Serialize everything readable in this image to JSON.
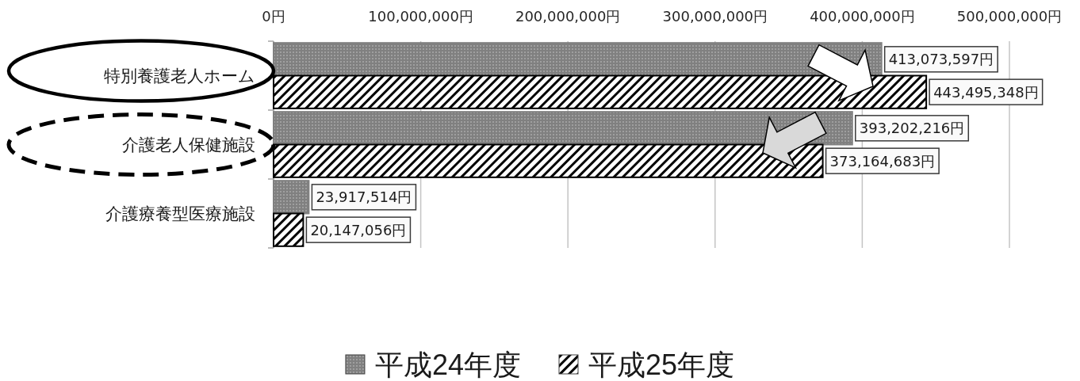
{
  "chart_data": {
    "type": "bar",
    "orientation": "horizontal",
    "categories": [
      "特別養護老人ホーム",
      "介護老人保健施設",
      "介護療養型医療施設"
    ],
    "series": [
      {
        "name": "平成24年度",
        "color": "#808080",
        "values": [
          413073597,
          393202216,
          23917514
        ],
        "value_labels": [
          "413,073,597円",
          "393,202,216円",
          "23,917,514円"
        ]
      },
      {
        "name": "平成25年度",
        "color": "#000000",
        "values": [
          443495348,
          373164683,
          20147056
        ],
        "value_labels": [
          "443,495,348円",
          "373,164,683円",
          "20,147,056円"
        ]
      }
    ],
    "xlim": [
      0,
      500000000
    ],
    "xticks": [
      {
        "value": 0,
        "label": "0円"
      },
      {
        "value": 100000000,
        "label": "100,000,000円"
      },
      {
        "value": 200000000,
        "label": "200,000,000円"
      },
      {
        "value": 300000000,
        "label": "300,000,000円"
      },
      {
        "value": 400000000,
        "label": "400,000,000円"
      },
      {
        "value": 500000000,
        "label": "500,000,000円"
      }
    ],
    "grid": "x",
    "legend": "bottom"
  }
}
